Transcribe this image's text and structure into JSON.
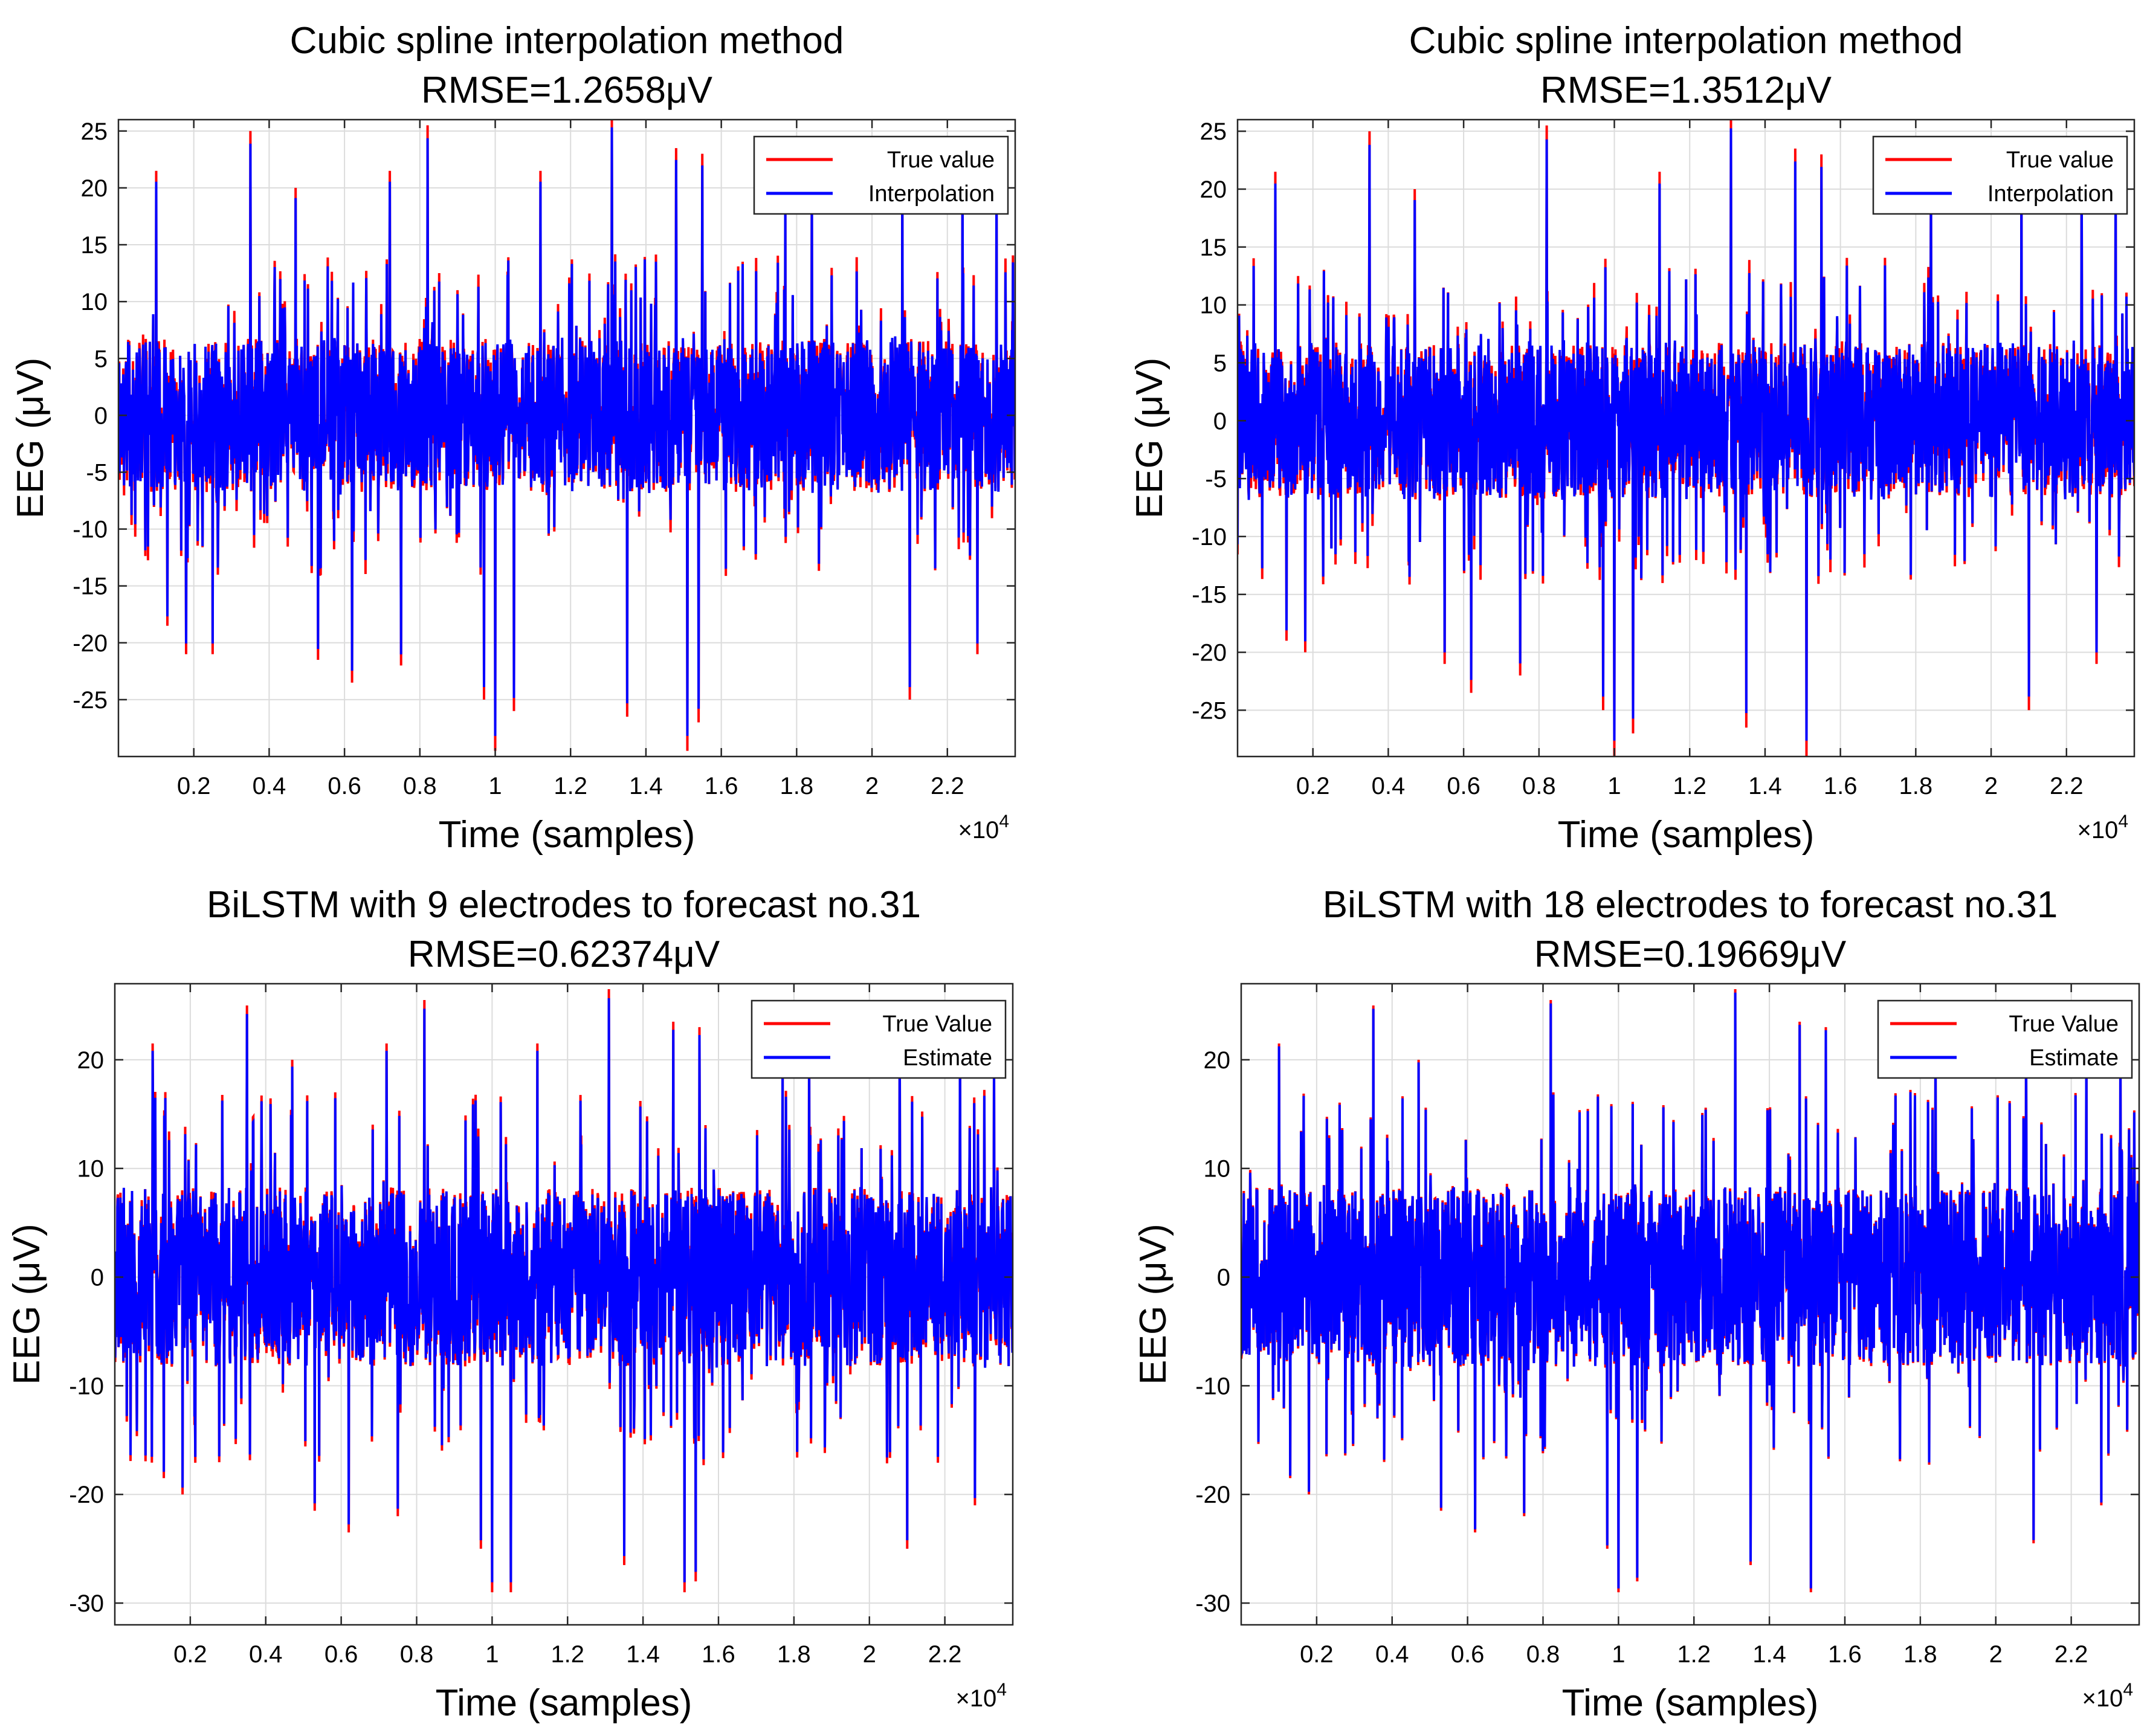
{
  "chart_data": [
    {
      "type": "line",
      "title": "Cubic spline interpolation method",
      "subtitle": "RMSE=1.2658μV",
      "xlabel": "Time (samples)",
      "ylabel": "EEG (μV)",
      "x_exponent_base": "×10",
      "x_exponent_power": "4",
      "xlim": [
        0,
        23800
      ],
      "ylim": [
        -30,
        26
      ],
      "x_ticks": [
        2000,
        4000,
        6000,
        8000,
        10000,
        12000,
        14000,
        16000,
        18000,
        20000,
        22000
      ],
      "x_tick_labels": [
        "0.2",
        "0.4",
        "0.6",
        "0.8",
        "1",
        "1.2",
        "1.4",
        "1.6",
        "1.8",
        "2",
        "2.2"
      ],
      "y_ticks": [
        -25,
        -20,
        -15,
        -10,
        -5,
        0,
        5,
        10,
        15,
        20,
        25
      ],
      "y_tick_labels": [
        "-25",
        "-20",
        "-15",
        "-10",
        "-5",
        "0",
        "5",
        "10",
        "15",
        "20",
        "25"
      ],
      "grid": true,
      "legend_position": "top-right",
      "noise": {
        "seed": 11,
        "amplitude": 4.5,
        "error": 1.27
      },
      "peaks": [
        [
          1000,
          21.5
        ],
        [
          1300,
          -18.5
        ],
        [
          1800,
          -21
        ],
        [
          2500,
          -21
        ],
        [
          3500,
          25
        ],
        [
          4700,
          20
        ],
        [
          5300,
          -21.5
        ],
        [
          6200,
          -23.5
        ],
        [
          7500,
          -22
        ],
        [
          8200,
          25.5
        ],
        [
          9700,
          -25
        ],
        [
          10000,
          -29.5
        ],
        [
          10500,
          -26
        ],
        [
          13100,
          26.5
        ],
        [
          13500,
          -26.5
        ],
        [
          14800,
          23.5
        ],
        [
          15100,
          -29.5
        ],
        [
          15500,
          23
        ],
        [
          15400,
          -27
        ],
        [
          18400,
          22
        ],
        [
          20800,
          22
        ],
        [
          21000,
          -25
        ],
        [
          22400,
          23
        ],
        [
          22800,
          -21
        ],
        [
          7200,
          21.5
        ],
        [
          11200,
          21.5
        ],
        [
          17700,
          21
        ],
        [
          23300,
          22
        ]
      ],
      "series": [
        {
          "name": "True value",
          "color": "#ff0000"
        },
        {
          "name": "Interpolation",
          "color": "#0000ff"
        }
      ]
    },
    {
      "type": "line",
      "title": "Cubic spline interpolation method",
      "subtitle": "RMSE=1.3512μV",
      "xlabel": "Time (samples)",
      "ylabel": "EEG (μV)",
      "x_exponent_base": "×10",
      "x_exponent_power": "4",
      "xlim": [
        0,
        23800
      ],
      "ylim": [
        -29,
        26
      ],
      "x_ticks": [
        2000,
        4000,
        6000,
        8000,
        10000,
        12000,
        14000,
        16000,
        18000,
        20000,
        22000
      ],
      "x_tick_labels": [
        "0.2",
        "0.4",
        "0.6",
        "0.8",
        "1",
        "1.2",
        "1.4",
        "1.6",
        "1.8",
        "2",
        "2.2"
      ],
      "y_ticks": [
        -25,
        -20,
        -15,
        -10,
        -5,
        0,
        5,
        10,
        15,
        20,
        25
      ],
      "y_tick_labels": [
        "-25",
        "-20",
        "-15",
        "-10",
        "-5",
        "0",
        "5",
        "10",
        "15",
        "20",
        "25"
      ],
      "grid": true,
      "legend_position": "top-right",
      "noise": {
        "seed": 23,
        "amplitude": 4.5,
        "error": 1.35
      },
      "peaks": [
        [
          1000,
          21.5
        ],
        [
          1300,
          -19
        ],
        [
          1800,
          -20
        ],
        [
          3500,
          25
        ],
        [
          4700,
          20
        ],
        [
          5500,
          -21
        ],
        [
          6200,
          -23.5
        ],
        [
          7500,
          -22
        ],
        [
          8200,
          25.5
        ],
        [
          9700,
          -25
        ],
        [
          10000,
          -29
        ],
        [
          10500,
          -27
        ],
        [
          11200,
          21.5
        ],
        [
          13100,
          26.5
        ],
        [
          13500,
          -26.5
        ],
        [
          14800,
          23.5
        ],
        [
          15100,
          -29
        ],
        [
          15500,
          23
        ],
        [
          18400,
          22
        ],
        [
          20800,
          22
        ],
        [
          21000,
          -25
        ],
        [
          22400,
          23
        ],
        [
          22800,
          -21
        ],
        [
          23300,
          22
        ]
      ],
      "series": [
        {
          "name": "True value",
          "color": "#ff0000"
        },
        {
          "name": "Interpolation",
          "color": "#0000ff"
        }
      ]
    },
    {
      "type": "line",
      "title": "BiLSTM with 9 electrodes to forecast no.31",
      "subtitle": "RMSE=0.62374μV",
      "xlabel": "Time (samples)",
      "ylabel": "EEG (μV)",
      "x_exponent_base": "×10",
      "x_exponent_power": "4",
      "xlim": [
        0,
        23800
      ],
      "ylim": [
        -32,
        27
      ],
      "x_ticks": [
        2000,
        4000,
        6000,
        8000,
        10000,
        12000,
        14000,
        16000,
        18000,
        20000,
        22000
      ],
      "x_tick_labels": [
        "0.2",
        "0.4",
        "0.6",
        "0.8",
        "1",
        "1.2",
        "1.4",
        "1.6",
        "1.8",
        "2",
        "2.2"
      ],
      "y_ticks": [
        -30,
        -20,
        -10,
        0,
        10,
        20
      ],
      "y_tick_labels": [
        "-30",
        "-20",
        "-10",
        "0",
        "10",
        "20"
      ],
      "grid": true,
      "legend_position": "top-right",
      "noise": {
        "seed": 37,
        "amplitude": 5.5,
        "error": 0.9
      },
      "peaks": [
        [
          1000,
          21.5
        ],
        [
          1300,
          -18.5
        ],
        [
          1800,
          -20
        ],
        [
          3500,
          25
        ],
        [
          4700,
          20
        ],
        [
          5300,
          -21.5
        ],
        [
          6200,
          -23.5
        ],
        [
          7500,
          -22
        ],
        [
          8200,
          25.5
        ],
        [
          9700,
          -25
        ],
        [
          10000,
          -29
        ],
        [
          10500,
          -29
        ],
        [
          13100,
          26.5
        ],
        [
          13500,
          -26.5
        ],
        [
          14800,
          23.5
        ],
        [
          15100,
          -29
        ],
        [
          15500,
          23
        ],
        [
          15400,
          -28
        ],
        [
          18400,
          22
        ],
        [
          20800,
          22
        ],
        [
          21000,
          -25
        ],
        [
          22400,
          23
        ],
        [
          22800,
          -21
        ],
        [
          7200,
          21.5
        ],
        [
          11200,
          21.5
        ],
        [
          17700,
          21
        ],
        [
          23300,
          20
        ]
      ],
      "series": [
        {
          "name": "True Value",
          "color": "#ff0000"
        },
        {
          "name": "Estimate",
          "color": "#0000ff"
        }
      ]
    },
    {
      "type": "line",
      "title": "BiLSTM with 18 electrodes to forecast no.31",
      "subtitle": "RMSE=0.19669μV",
      "xlabel": "Time (samples)",
      "ylabel": "EEG (μV)",
      "x_exponent_base": "×10",
      "x_exponent_power": "4",
      "xlim": [
        0,
        23800
      ],
      "ylim": [
        -32,
        27
      ],
      "x_ticks": [
        2000,
        4000,
        6000,
        8000,
        10000,
        12000,
        14000,
        16000,
        18000,
        20000,
        22000
      ],
      "x_tick_labels": [
        "0.2",
        "0.4",
        "0.6",
        "0.8",
        "1",
        "1.2",
        "1.4",
        "1.6",
        "1.8",
        "2",
        "2.2"
      ],
      "y_ticks": [
        -30,
        -20,
        -10,
        0,
        10,
        20
      ],
      "y_tick_labels": [
        "-30",
        "-20",
        "-10",
        "0",
        "10",
        "20"
      ],
      "grid": true,
      "legend_position": "top-right",
      "noise": {
        "seed": 53,
        "amplitude": 5.5,
        "error": 0.35
      },
      "peaks": [
        [
          1000,
          21.5
        ],
        [
          1300,
          -18.5
        ],
        [
          1800,
          -20
        ],
        [
          3500,
          25
        ],
        [
          4700,
          20
        ],
        [
          5300,
          -21.5
        ],
        [
          6200,
          -23.5
        ],
        [
          7500,
          -22
        ],
        [
          8200,
          25.5
        ],
        [
          9700,
          -25
        ],
        [
          10000,
          -29
        ],
        [
          10500,
          -28
        ],
        [
          13100,
          26.5
        ],
        [
          13500,
          -26.5
        ],
        [
          14800,
          23.5
        ],
        [
          15100,
          -29
        ],
        [
          15500,
          23
        ],
        [
          18400,
          22
        ],
        [
          20800,
          22
        ],
        [
          21000,
          -24.5
        ],
        [
          22400,
          23
        ],
        [
          22800,
          -21
        ],
        [
          23300,
          22
        ]
      ],
      "series": [
        {
          "name": "True Value",
          "color": "#ff0000"
        },
        {
          "name": "Estimate",
          "color": "#0000ff"
        }
      ]
    }
  ]
}
